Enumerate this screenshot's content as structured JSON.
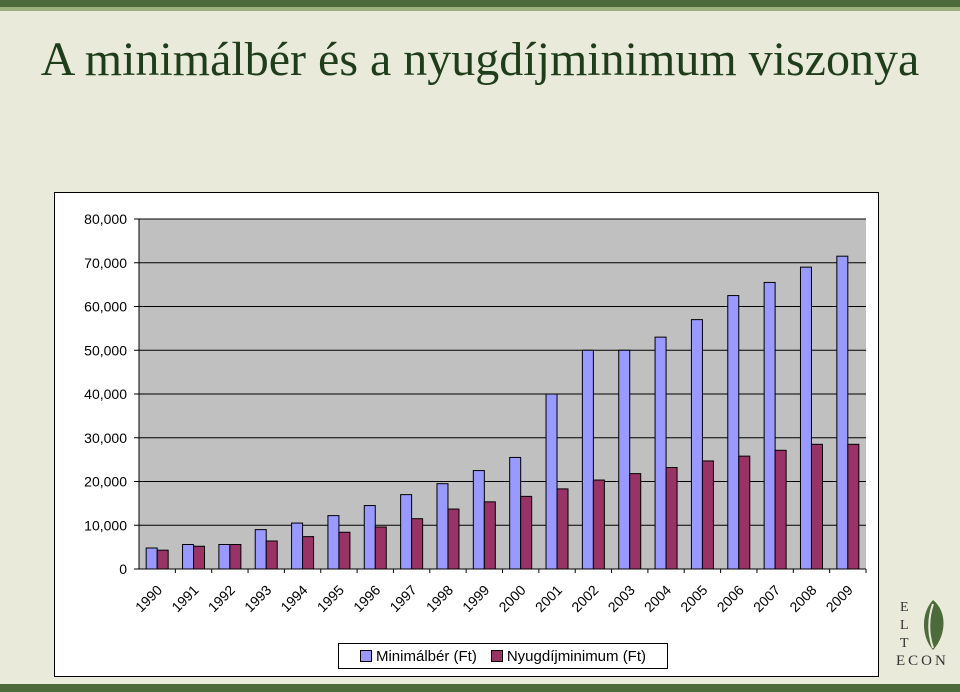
{
  "title": "A minimálbér és a nyugdíjminimum viszonya",
  "legend": {
    "series1": "Minimálbér (Ft)",
    "series2": "Nyugdíjminimum (Ft)"
  },
  "logo": {
    "letters": [
      "E",
      "L",
      "T"
    ],
    "econ": "ECON"
  },
  "colors": {
    "series1": "#9999ff",
    "series2": "#993366",
    "plot_background": "#c0c0c0",
    "green": "#4d6b3a"
  },
  "chart_data": {
    "type": "bar",
    "categories": [
      "1990",
      "1991",
      "1992",
      "1993",
      "1994",
      "1995",
      "1996",
      "1997",
      "1998",
      "1999",
      "2000",
      "2001",
      "2002",
      "2003",
      "2004",
      "2005",
      "2006",
      "2007",
      "2008",
      "2009"
    ],
    "series": [
      {
        "name": "Minimálbér (Ft)",
        "values": [
          4800,
          5600,
          5600,
          9000,
          10500,
          12200,
          14500,
          17000,
          19500,
          22500,
          25500,
          40000,
          50000,
          50000,
          53000,
          57000,
          62500,
          65500,
          69000,
          71500
        ]
      },
      {
        "name": "Nyugdíjminimum (Ft)",
        "values": [
          4300,
          5200,
          5600,
          6400,
          7400,
          8400,
          9600,
          11500,
          13700,
          15350,
          16600,
          18310,
          20330,
          21800,
          23200,
          24700,
          25800,
          27130,
          28500,
          28500
        ]
      }
    ],
    "ylim": [
      0,
      80000
    ],
    "yticks": [
      "0",
      "10,000",
      "20,000",
      "30,000",
      "40,000",
      "50,000",
      "60,000",
      "70,000",
      "80,000"
    ],
    "grid": true,
    "legend_position": "bottom"
  }
}
